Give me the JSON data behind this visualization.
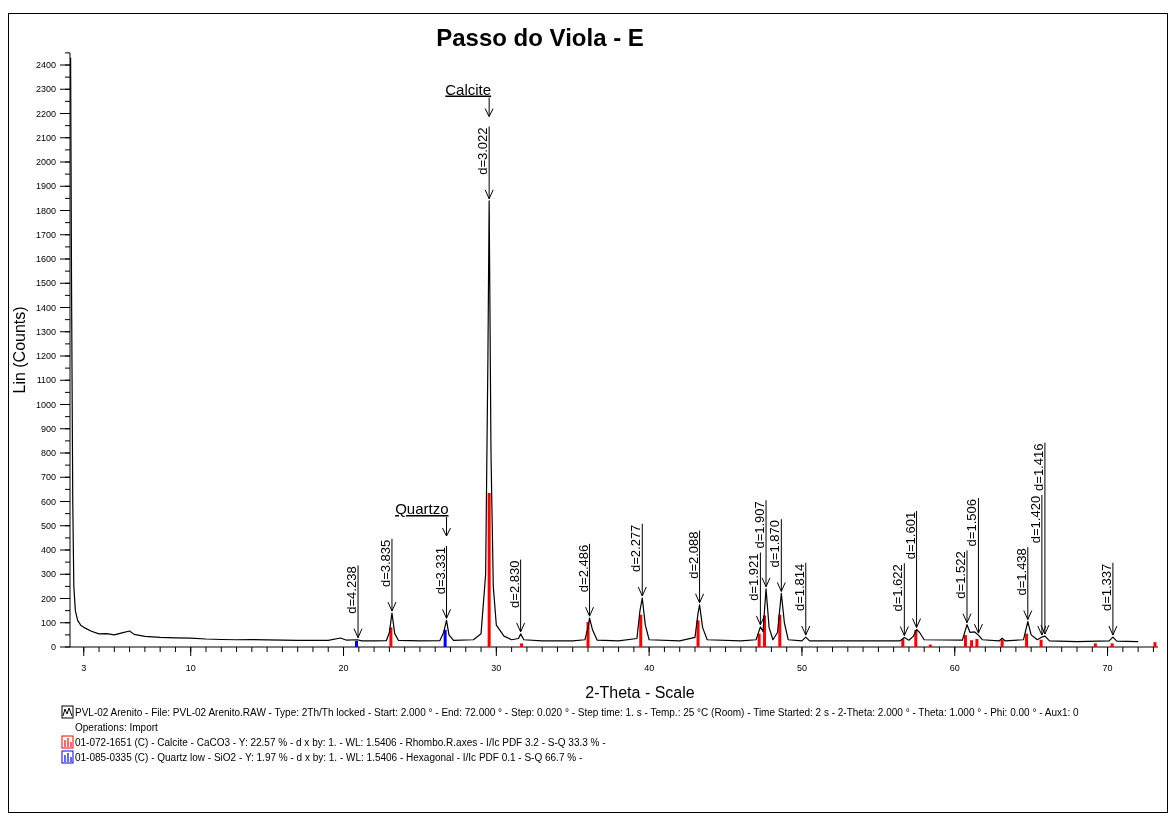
{
  "chart_data": {
    "type": "line",
    "title": "Passo do Viola - E",
    "xlabel": "2-Theta - Scale",
    "ylabel": "Lin (Counts)",
    "xlim": [
      2.1,
      73.3
    ],
    "xticks": [
      3,
      10,
      20,
      30,
      40,
      50,
      60,
      70
    ],
    "ylim": [
      0,
      2450
    ],
    "yticks": [
      0,
      100,
      200,
      300,
      400,
      500,
      600,
      700,
      800,
      900,
      1000,
      1100,
      1200,
      1300,
      1400,
      1500,
      1600,
      1700,
      1800,
      1900,
      2000,
      2100,
      2200,
      2300,
      2400
    ],
    "legend": "bottom",
    "series": [
      {
        "name": "PVL-02 Arenito - File: PVL-02 Arenito.RAW - Type: 2Th/Th locked - Start: 2.000 ° - End: 72.000 ° - Step: 0.020 ° - Step time: 1. s - Temp.: 25 °C (Room) - Time Started: 2 s - 2-Theta: 2.000 ° - Theta: 1.000 ° - Phi: 0.00 ° - Aux1: 0",
        "color": "#000000",
        "x": [
          2.14,
          2.2,
          2.28,
          2.35,
          2.45,
          2.6,
          2.8,
          3,
          3.5,
          4,
          4.5,
          5,
          5.5,
          6,
          6.3,
          7,
          8,
          9,
          10,
          11,
          12,
          13,
          14,
          15,
          16,
          17,
          18,
          19,
          19.8,
          20.2,
          20.9,
          21.2,
          22,
          22.8,
          23.0,
          23.17,
          23.35,
          23.6,
          25,
          26.3,
          26.55,
          26.74,
          26.9,
          27.2,
          28.5,
          29.0,
          29.3,
          29.45,
          29.53,
          29.65,
          29.8,
          30.0,
          30.5,
          31.0,
          31.45,
          31.59,
          31.8,
          33,
          35,
          35.8,
          36.0,
          36.1,
          36.3,
          36.6,
          38,
          39.2,
          39.4,
          39.55,
          39.75,
          40.0,
          42,
          43.0,
          43.2,
          43.3,
          43.5,
          43.8,
          46,
          47.0,
          47.28,
          47.45,
          47.65,
          47.85,
          48.1,
          48.4,
          48.65,
          48.85,
          49.1,
          50.0,
          50.25,
          50.5,
          53,
          56.4,
          56.7,
          57.0,
          57.3,
          57.5,
          57.7,
          58.0,
          60.5,
          60.8,
          61.0,
          61.3,
          61.55,
          61.8,
          62.9,
          63.1,
          63.3,
          64.5,
          64.78,
          65.0,
          65.4,
          65.7,
          65.9,
          66.2,
          68,
          70.1,
          70.35,
          70.6,
          72
        ],
        "values": [
          2430,
          1500,
          600,
          250,
          150,
          110,
          90,
          81,
          65,
          54,
          55,
          50,
          58,
          66,
          52,
          44,
          40,
          38,
          37,
          33,
          31,
          30,
          31,
          29,
          28,
          27,
          27,
          27,
          37,
          28,
          30,
          25,
          25,
          26,
          60,
          140,
          55,
          27,
          25,
          26,
          60,
          110,
          50,
          27,
          30,
          55,
          300,
          1200,
          1840,
          800,
          250,
          90,
          45,
          30,
          35,
          54,
          30,
          25,
          25,
          30,
          80,
          119,
          70,
          28,
          25,
          35,
          150,
          202,
          90,
          30,
          25,
          40,
          140,
          174,
          80,
          30,
          25,
          30,
          83,
          64,
          240,
          80,
          30,
          60,
          221,
          100,
          30,
          25,
          41,
          25,
          25,
          25,
          39,
          28,
          45,
          72,
          60,
          30,
          28,
          92,
          60,
          62,
          49,
          30,
          25,
          36,
          25,
          30,
          105,
          50,
          30,
          41,
          45,
          25,
          22,
          25,
          41,
          24,
          22
        ]
      },
      {
        "type": "bar",
        "name": "01-072-1651 (C) - Calcite - CaCO3 - Y: 22.57 % - d x by: 1. - WL: 1.5406 - Rhombo.R.axes - I/Ic PDF 3.2 - S-Q 33.3 % -",
        "color": "#ff0000",
        "x": [
          23.1,
          29.53,
          31.65,
          36.0,
          39.45,
          43.2,
          47.2,
          47.55,
          48.55,
          56.6,
          57.45,
          58.4,
          60.7,
          61.1,
          61.45,
          63.1,
          64.7,
          65.65,
          69.2,
          70.3,
          73.1
        ],
        "values": [
          81,
          635,
          15,
          103,
          133,
          110,
          55,
          130,
          133,
          33,
          70,
          10,
          49,
          28,
          33,
          30,
          55,
          30,
          15,
          15,
          20
        ]
      },
      {
        "type": "bar",
        "name": "01-085-0335 (C) - Quartz low - SiO2 - Y: 1.97 % - d x by: 1. - WL: 1.5406 - Hexagonal - I/Ic PDF 0.1 - S-Q 66.7 % -",
        "color": "#0000ff",
        "x": [
          20.85,
          26.65
        ],
        "values": [
          25,
          71
        ]
      }
    ],
    "annotations": [
      "Operations: Import",
      {
        "text": "d=4.238",
        "x": 20.95,
        "y": 30
      },
      {
        "text": "d=3.835",
        "x": 23.17,
        "y": 140
      },
      {
        "text": "d=3.331",
        "x": 26.74,
        "y": 110
      },
      "Quartzo",
      {
        "text": "d=3.022",
        "x": 29.53,
        "y": 1840
      },
      "Calcite",
      {
        "text": "d=2.830",
        "x": 31.59,
        "y": 54
      },
      {
        "text": "d=2.486",
        "x": 36.1,
        "y": 119
      },
      {
        "text": "d=2.277",
        "x": 39.55,
        "y": 202
      },
      {
        "text": "d=2.088",
        "x": 43.3,
        "y": 174
      },
      {
        "text": "d=1.921",
        "x": 47.28,
        "y": 83
      },
      {
        "text": "d=1.907",
        "x": 47.65,
        "y": 240
      },
      {
        "text": "d=1.870",
        "x": 48.65,
        "y": 221
      },
      {
        "text": "d=1.814",
        "x": 50.25,
        "y": 41
      },
      {
        "text": "d=1.622",
        "x": 56.7,
        "y": 39
      },
      {
        "text": "d=1.601",
        "x": 57.5,
        "y": 72
      },
      {
        "text": "d=1.522",
        "x": 60.8,
        "y": 92
      },
      {
        "text": "d=1.506",
        "x": 61.55,
        "y": 49
      },
      {
        "text": "d=1.438",
        "x": 64.78,
        "y": 105
      },
      {
        "text": "d=1.420",
        "x": 65.7,
        "y": 41
      },
      {
        "text": "d=1.416",
        "x": 65.9,
        "y": 45
      },
      {
        "text": "d=1.337",
        "x": 70.35,
        "y": 41
      }
    ]
  }
}
